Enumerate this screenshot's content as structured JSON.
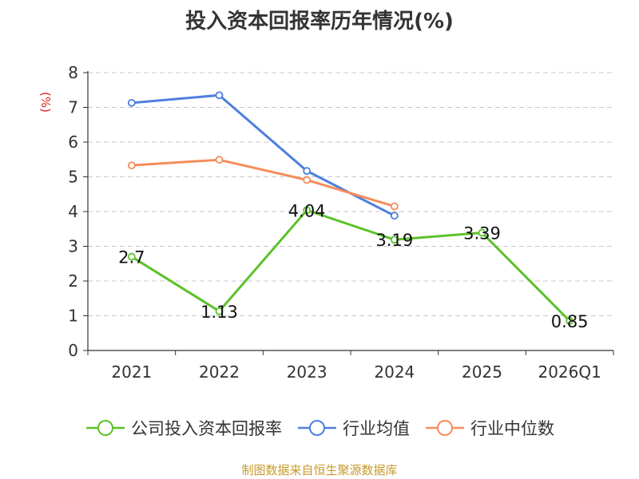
{
  "chart_data": {
    "type": "line",
    "title": "投入资本回报率历年情况(%)",
    "ylabel": "(%)",
    "xlabel": "",
    "ylim": [
      0,
      8
    ],
    "yticks": [
      0,
      1,
      2,
      3,
      4,
      5,
      6,
      7,
      8
    ],
    "grid": true,
    "categories": [
      "2021",
      "2022",
      "2023",
      "2024",
      "2025",
      "2026Q1"
    ],
    "series": [
      {
        "name": "公司投入资本回报率",
        "color": "#5cc12a",
        "values": [
          2.7,
          1.13,
          4.04,
          3.19,
          3.39,
          0.85
        ],
        "labels": [
          "2.7",
          "1.13",
          "4.04",
          "3.19",
          "3.39",
          "0.85"
        ],
        "show_labels": true
      },
      {
        "name": "行业均值",
        "color": "#4e7fdc",
        "values": [
          7.13,
          7.35,
          5.17,
          3.88,
          null,
          null
        ],
        "show_labels": false
      },
      {
        "name": "行业中位数",
        "color": "#f58d5a",
        "values": [
          5.33,
          5.49,
          4.91,
          4.15,
          null,
          null
        ],
        "show_labels": false
      }
    ],
    "legend_position": "bottom"
  },
  "source_text": "制图数据来自恒生聚源数据库"
}
